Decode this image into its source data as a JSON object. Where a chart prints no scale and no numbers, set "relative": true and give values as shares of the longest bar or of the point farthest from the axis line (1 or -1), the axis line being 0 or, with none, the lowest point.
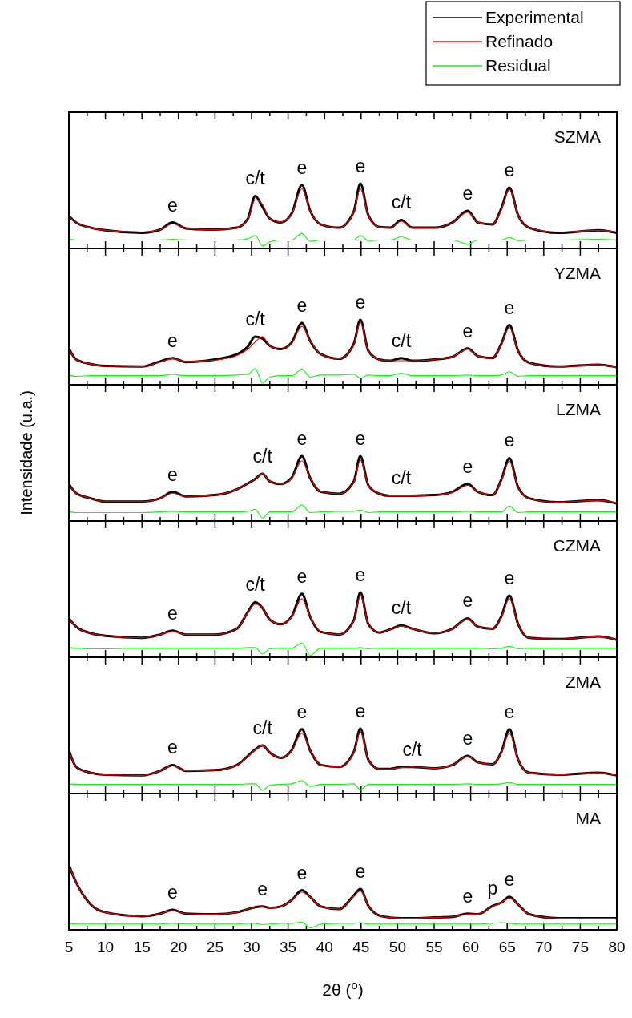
{
  "chart_data": [
    {
      "type": "line",
      "title": "SZMA",
      "relative": true,
      "legend": "top right",
      "tick_labels": false,
      "xlim": [
        5,
        80
      ],
      "xticks": [
        5,
        {
          "value": 7.5,
          "label": null
        },
        10,
        {
          "value": 12.5,
          "label": null
        },
        15,
        {
          "value": 17.5,
          "label": null
        },
        20,
        {
          "value": 22.5,
          "label": null
        },
        25,
        {
          "value": 27.5,
          "label": null
        },
        30,
        {
          "value": 32.5,
          "label": null
        },
        35,
        {
          "value": 37.5,
          "label": null
        },
        40,
        {
          "value": 42.5,
          "label": null
        },
        45,
        {
          "value": 47.5,
          "label": null
        },
        50,
        {
          "value": 52.5,
          "label": null
        },
        55,
        {
          "value": 57.5,
          "label": null
        },
        60,
        {
          "value": 62.5,
          "label": null
        },
        65,
        {
          "value": 67.5,
          "label": null
        },
        70,
        {
          "value": 72.5,
          "label": null
        },
        75,
        {
          "value": 77.5,
          "label": null
        },
        80
      ],
      "x": [
        5,
        6,
        8,
        10,
        15,
        17.5,
        19.2,
        21,
        25,
        28,
        29.5,
        30.5,
        31.5,
        32.5,
        34,
        35.5,
        36.9,
        38,
        39.5,
        42,
        44,
        44.9,
        46,
        47.5,
        49,
        50.5,
        52,
        55,
        57.5,
        59.6,
        61,
        63,
        64.2,
        65.3,
        66.5,
        68,
        72,
        77.5,
        80
      ],
      "series": [
        {
          "name": "Experimental",
          "color": "#000000",
          "values": [
            0.5,
            0.4,
            0.32,
            0.28,
            0.24,
            0.29,
            0.4,
            0.31,
            0.29,
            0.32,
            0.46,
            0.81,
            0.64,
            0.46,
            0.4,
            0.54,
            0.98,
            0.59,
            0.37,
            0.32,
            0.57,
            1.0,
            0.51,
            0.33,
            0.32,
            0.44,
            0.32,
            0.32,
            0.4,
            0.58,
            0.4,
            0.37,
            0.62,
            0.94,
            0.51,
            0.32,
            0.24,
            0.28,
            0.24
          ]
        },
        {
          "name": "Refinado",
          "color": "#ff0000",
          "values": [
            0.5,
            0.4,
            0.32,
            0.28,
            0.25,
            0.29,
            0.38,
            0.31,
            0.29,
            0.32,
            0.45,
            0.75,
            0.68,
            0.46,
            0.41,
            0.53,
            0.92,
            0.58,
            0.37,
            0.32,
            0.56,
            0.92,
            0.51,
            0.33,
            0.32,
            0.42,
            0.32,
            0.32,
            0.4,
            0.56,
            0.4,
            0.37,
            0.6,
            0.91,
            0.51,
            0.32,
            0.25,
            0.28,
            0.25
          ]
        },
        {
          "name": "Residual",
          "color": "#00ff00",
          "values": [
            0.14,
            0.13,
            0.13,
            0.13,
            0.13,
            0.13,
            0.14,
            0.13,
            0.13,
            0.13,
            0.15,
            0.2,
            0.04,
            0.1,
            0.13,
            0.13,
            0.23,
            0.11,
            0.13,
            0.13,
            0.13,
            0.2,
            0.12,
            0.13,
            0.13,
            0.18,
            0.13,
            0.13,
            0.13,
            0.07,
            0.13,
            0.13,
            0.13,
            0.17,
            0.12,
            0.13,
            0.13,
            0.14,
            0.13
          ]
        }
      ],
      "annotations": [
        {
          "text": "e",
          "x": 19.2,
          "y": 0.4
        },
        {
          "text": "c/t",
          "x": 30.5,
          "y": 0.81
        },
        {
          "text": "e",
          "x": 36.9,
          "y": 0.98
        },
        {
          "text": "e",
          "x": 44.9,
          "y": 1.0
        },
        {
          "text": "c/t",
          "x": 50.5,
          "y": 0.44
        },
        {
          "text": "e",
          "x": 59.6,
          "y": 0.58
        },
        {
          "text": "e",
          "x": 65.3,
          "y": 0.94
        }
      ]
    },
    {
      "type": "line",
      "title": "YZMA",
      "relative": true,
      "tick_labels": false,
      "xlim": [
        5,
        80
      ],
      "xticks": [
        5,
        {
          "value": 7.5,
          "label": null
        },
        10,
        {
          "value": 12.5,
          "label": null
        },
        15,
        {
          "value": 17.5,
          "label": null
        },
        20,
        {
          "value": 22.5,
          "label": null
        },
        25,
        {
          "value": 27.5,
          "label": null
        },
        30,
        {
          "value": 32.5,
          "label": null
        },
        35,
        {
          "value": 37.5,
          "label": null
        },
        40,
        {
          "value": 42.5,
          "label": null
        },
        45,
        {
          "value": 47.5,
          "label": null
        },
        50,
        {
          "value": 52.5,
          "label": null
        },
        55,
        {
          "value": 57.5,
          "label": null
        },
        60,
        {
          "value": 62.5,
          "label": null
        },
        65,
        {
          "value": 67.5,
          "label": null
        },
        70,
        {
          "value": 72.5,
          "label": null
        },
        75,
        {
          "value": 77.5,
          "label": null
        },
        80
      ],
      "x": [
        5,
        6,
        8,
        10,
        15,
        17.5,
        19.2,
        21,
        25,
        28,
        29.5,
        30.5,
        31.5,
        32.5,
        34,
        35.5,
        36.9,
        38,
        39.5,
        42,
        44,
        44.9,
        46,
        47.5,
        49,
        50.5,
        52,
        55,
        57.5,
        59.6,
        61,
        63,
        64.2,
        65.3,
        66.5,
        68,
        72,
        77.5,
        80
      ],
      "series": [
        {
          "color": "#000000",
          "values": [
            0.56,
            0.39,
            0.32,
            0.29,
            0.28,
            0.36,
            0.41,
            0.35,
            0.39,
            0.47,
            0.59,
            0.74,
            0.71,
            0.6,
            0.55,
            0.65,
            0.95,
            0.68,
            0.47,
            0.4,
            0.63,
            1.0,
            0.52,
            0.39,
            0.37,
            0.41,
            0.37,
            0.39,
            0.43,
            0.56,
            0.44,
            0.41,
            0.63,
            0.92,
            0.52,
            0.34,
            0.28,
            0.31,
            0.27
          ]
        },
        {
          "color": "#ff0000",
          "values": [
            0.55,
            0.39,
            0.32,
            0.29,
            0.28,
            0.35,
            0.4,
            0.36,
            0.38,
            0.45,
            0.55,
            0.66,
            0.74,
            0.6,
            0.55,
            0.64,
            0.9,
            0.68,
            0.47,
            0.4,
            0.62,
            0.96,
            0.52,
            0.39,
            0.37,
            0.37,
            0.37,
            0.39,
            0.43,
            0.55,
            0.44,
            0.41,
            0.62,
            0.88,
            0.52,
            0.34,
            0.28,
            0.31,
            0.27
          ]
        },
        {
          "color": "#00ff00",
          "values": [
            0.15,
            0.13,
            0.14,
            0.14,
            0.14,
            0.14,
            0.16,
            0.14,
            0.14,
            0.15,
            0.16,
            0.25,
            0.03,
            0.12,
            0.14,
            0.14,
            0.24,
            0.12,
            0.15,
            0.15,
            0.16,
            0.1,
            0.15,
            0.14,
            0.14,
            0.18,
            0.14,
            0.14,
            0.14,
            0.15,
            0.14,
            0.14,
            0.15,
            0.2,
            0.13,
            0.14,
            0.14,
            0.14,
            0.14
          ]
        }
      ],
      "annotations": [
        {
          "text": "e",
          "x": 19.2,
          "y": 0.41
        },
        {
          "text": "c/t",
          "x": 30.5,
          "y": 0.74
        },
        {
          "text": "e",
          "x": 36.9,
          "y": 0.95
        },
        {
          "text": "e",
          "x": 44.9,
          "y": 1.0
        },
        {
          "text": "c/t",
          "x": 50.5,
          "y": 0.41
        },
        {
          "text": "e",
          "x": 59.6,
          "y": 0.56
        },
        {
          "text": "e",
          "x": 65.3,
          "y": 0.92
        }
      ]
    },
    {
      "type": "line",
      "title": "LZMA",
      "ylabel": "Intensidade (u.a.)",
      "relative": true,
      "tick_labels": false,
      "xlim": [
        5,
        80
      ],
      "xticks": [
        5,
        {
          "value": 7.5,
          "label": null
        },
        10,
        {
          "value": 12.5,
          "label": null
        },
        15,
        {
          "value": 17.5,
          "label": null
        },
        20,
        {
          "value": 22.5,
          "label": null
        },
        25,
        {
          "value": 27.5,
          "label": null
        },
        30,
        {
          "value": 32.5,
          "label": null
        },
        35,
        {
          "value": 37.5,
          "label": null
        },
        40,
        {
          "value": 42.5,
          "label": null
        },
        45,
        {
          "value": 47.5,
          "label": null
        },
        50,
        {
          "value": 52.5,
          "label": null
        },
        55,
        {
          "value": 57.5,
          "label": null
        },
        60,
        {
          "value": 62.5,
          "label": null
        },
        65,
        {
          "value": 67.5,
          "label": null
        },
        70,
        {
          "value": 72.5,
          "label": null
        },
        75,
        {
          "value": 77.5,
          "label": null
        },
        80
      ],
      "x": [
        5,
        6,
        8,
        10,
        15,
        17.5,
        19.2,
        21,
        25,
        28,
        29.5,
        30.5,
        31.5,
        32.5,
        34,
        35.5,
        36.9,
        38,
        39.5,
        42,
        44,
        44.9,
        46,
        47.5,
        49,
        50.5,
        52,
        55,
        57.5,
        59.6,
        61,
        63,
        64.2,
        65.3,
        66.5,
        68,
        72,
        77.5,
        80
      ],
      "series": [
        {
          "color": "#000000",
          "values": [
            0.57,
            0.43,
            0.35,
            0.3,
            0.3,
            0.35,
            0.45,
            0.38,
            0.4,
            0.49,
            0.58,
            0.65,
            0.73,
            0.61,
            0.57,
            0.67,
            1.0,
            0.67,
            0.45,
            0.42,
            0.61,
            1.0,
            0.55,
            0.42,
            0.39,
            0.39,
            0.39,
            0.4,
            0.45,
            0.57,
            0.45,
            0.4,
            0.64,
            0.97,
            0.52,
            0.35,
            0.29,
            0.32,
            0.27
          ]
        },
        {
          "color": "#ff0000",
          "values": [
            0.57,
            0.43,
            0.35,
            0.3,
            0.3,
            0.35,
            0.43,
            0.38,
            0.4,
            0.49,
            0.58,
            0.65,
            0.73,
            0.61,
            0.57,
            0.66,
            0.93,
            0.67,
            0.45,
            0.42,
            0.6,
            0.94,
            0.55,
            0.42,
            0.39,
            0.39,
            0.39,
            0.4,
            0.44,
            0.55,
            0.45,
            0.4,
            0.63,
            0.92,
            0.52,
            0.35,
            0.29,
            0.32,
            0.28
          ]
        },
        {
          "color": "#00ff00",
          "values": [
            0.14,
            0.13,
            0.13,
            0.13,
            0.13,
            0.14,
            0.15,
            0.14,
            0.14,
            0.14,
            0.15,
            0.18,
            0.05,
            0.14,
            0.14,
            0.14,
            0.25,
            0.13,
            0.14,
            0.15,
            0.15,
            0.17,
            0.13,
            0.14,
            0.14,
            0.14,
            0.14,
            0.14,
            0.14,
            0.15,
            0.14,
            0.14,
            0.14,
            0.23,
            0.13,
            0.14,
            0.14,
            0.14,
            0.14
          ]
        }
      ],
      "annotations": [
        {
          "text": "e",
          "x": 19.2,
          "y": 0.45
        },
        {
          "text": "c/t",
          "x": 31.5,
          "y": 0.73
        },
        {
          "text": "e",
          "x": 36.9,
          "y": 1.0
        },
        {
          "text": "e",
          "x": 44.9,
          "y": 1.0
        },
        {
          "text": "c/t",
          "x": 50.5,
          "y": 0.39
        },
        {
          "text": "e",
          "x": 59.6,
          "y": 0.57
        },
        {
          "text": "e",
          "x": 65.3,
          "y": 0.97
        }
      ]
    },
    {
      "type": "line",
      "title": "CZMA",
      "relative": true,
      "tick_labels": false,
      "xlim": [
        5,
        80
      ],
      "xticks": [
        5,
        {
          "value": 7.5,
          "label": null
        },
        10,
        {
          "value": 12.5,
          "label": null
        },
        15,
        {
          "value": 17.5,
          "label": null
        },
        20,
        {
          "value": 22.5,
          "label": null
        },
        25,
        {
          "value": 27.5,
          "label": null
        },
        30,
        {
          "value": 32.5,
          "label": null
        },
        35,
        {
          "value": 37.5,
          "label": null
        },
        40,
        {
          "value": 42.5,
          "label": null
        },
        45,
        {
          "value": 47.5,
          "label": null
        },
        50,
        {
          "value": 52.5,
          "label": null
        },
        55,
        {
          "value": 57.5,
          "label": null
        },
        60,
        {
          "value": 62.5,
          "label": null
        },
        65,
        {
          "value": 67.5,
          "label": null
        },
        70,
        {
          "value": 72.5,
          "label": null
        },
        75,
        {
          "value": 77.5,
          "label": null
        },
        80
      ],
      "x": [
        5,
        6,
        8,
        10,
        15,
        17.5,
        19.2,
        21,
        25,
        28,
        29.5,
        30.5,
        31.5,
        32.5,
        34,
        35.5,
        36.9,
        38,
        39.5,
        42,
        44,
        44.9,
        46,
        47.5,
        49,
        50.5,
        52,
        55,
        57.5,
        59.6,
        61,
        63,
        64.2,
        65.3,
        66.5,
        68,
        72,
        77.5,
        80
      ],
      "series": [
        {
          "color": "#000000",
          "values": [
            0.6,
            0.47,
            0.37,
            0.33,
            0.3,
            0.35,
            0.41,
            0.35,
            0.35,
            0.44,
            0.7,
            0.85,
            0.76,
            0.58,
            0.51,
            0.63,
            0.98,
            0.63,
            0.39,
            0.35,
            0.57,
            1.0,
            0.51,
            0.38,
            0.43,
            0.49,
            0.44,
            0.37,
            0.44,
            0.6,
            0.47,
            0.44,
            0.63,
            0.95,
            0.51,
            0.3,
            0.28,
            0.32,
            0.27
          ]
        },
        {
          "color": "#ff0000",
          "values": [
            0.6,
            0.47,
            0.37,
            0.33,
            0.3,
            0.35,
            0.4,
            0.35,
            0.35,
            0.44,
            0.69,
            0.82,
            0.76,
            0.58,
            0.51,
            0.62,
            0.9,
            0.63,
            0.39,
            0.35,
            0.56,
            0.96,
            0.51,
            0.38,
            0.43,
            0.48,
            0.44,
            0.37,
            0.44,
            0.59,
            0.47,
            0.44,
            0.62,
            0.9,
            0.51,
            0.3,
            0.28,
            0.32,
            0.27
          ]
        },
        {
          "color": "#00ff00",
          "values": [
            0.15,
            0.14,
            0.13,
            0.13,
            0.14,
            0.14,
            0.14,
            0.14,
            0.14,
            0.14,
            0.15,
            0.15,
            0.05,
            0.13,
            0.14,
            0.14,
            0.22,
            0.03,
            0.14,
            0.14,
            0.14,
            0.15,
            0.13,
            0.14,
            0.14,
            0.14,
            0.14,
            0.14,
            0.14,
            0.14,
            0.14,
            0.13,
            0.14,
            0.17,
            0.13,
            0.14,
            0.14,
            0.14,
            0.14
          ]
        }
      ],
      "annotations": [
        {
          "text": "e",
          "x": 19.2,
          "y": 0.41
        },
        {
          "text": "c/t",
          "x": 30.5,
          "y": 0.85
        },
        {
          "text": "e",
          "x": 36.9,
          "y": 0.98
        },
        {
          "text": "e",
          "x": 44.9,
          "y": 1.0
        },
        {
          "text": "c/t",
          "x": 50.5,
          "y": 0.49
        },
        {
          "text": "e",
          "x": 59.6,
          "y": 0.6
        },
        {
          "text": "e",
          "x": 65.3,
          "y": 0.95
        }
      ]
    },
    {
      "type": "line",
      "title": "ZMA",
      "relative": true,
      "tick_labels": false,
      "xlim": [
        5,
        80
      ],
      "xticks": [
        5,
        {
          "value": 7.5,
          "label": null
        },
        10,
        {
          "value": 12.5,
          "label": null
        },
        15,
        {
          "value": 17.5,
          "label": null
        },
        20,
        {
          "value": 22.5,
          "label": null
        },
        25,
        {
          "value": 27.5,
          "label": null
        },
        30,
        {
          "value": 32.5,
          "label": null
        },
        35,
        {
          "value": 37.5,
          "label": null
        },
        40,
        {
          "value": 42.5,
          "label": null
        },
        45,
        {
          "value": 47.5,
          "label": null
        },
        50,
        {
          "value": 52.5,
          "label": null
        },
        55,
        {
          "value": 57.5,
          "label": null
        },
        60,
        {
          "value": 62.5,
          "label": null
        },
        65,
        {
          "value": 67.5,
          "label": null
        },
        70,
        {
          "value": 72.5,
          "label": null
        },
        75,
        {
          "value": 77.5,
          "label": null
        },
        80
      ],
      "x": [
        5,
        6,
        8,
        10,
        15,
        17.5,
        19.2,
        21,
        25,
        28,
        29.5,
        30.5,
        31.5,
        32.5,
        34,
        35.5,
        36.9,
        38,
        39.5,
        42,
        44,
        44.9,
        46,
        47.5,
        49,
        50.5,
        52,
        55,
        57.5,
        59.6,
        61,
        63,
        64.2,
        65.3,
        66.5,
        68,
        72,
        77.5,
        80
      ],
      "series": [
        {
          "color": "#000000",
          "values": [
            0.67,
            0.41,
            0.32,
            0.29,
            0.28,
            0.35,
            0.44,
            0.35,
            0.36,
            0.44,
            0.58,
            0.68,
            0.74,
            0.63,
            0.55,
            0.67,
            0.99,
            0.67,
            0.44,
            0.41,
            0.64,
            1.0,
            0.52,
            0.38,
            0.38,
            0.41,
            0.41,
            0.39,
            0.44,
            0.58,
            0.48,
            0.45,
            0.64,
            0.99,
            0.52,
            0.32,
            0.29,
            0.32,
            0.28
          ]
        },
        {
          "color": "#ff0000",
          "values": [
            0.67,
            0.41,
            0.32,
            0.29,
            0.28,
            0.35,
            0.43,
            0.35,
            0.36,
            0.44,
            0.57,
            0.67,
            0.74,
            0.63,
            0.55,
            0.66,
            0.93,
            0.67,
            0.44,
            0.41,
            0.63,
            0.95,
            0.52,
            0.38,
            0.38,
            0.4,
            0.41,
            0.39,
            0.44,
            0.57,
            0.48,
            0.45,
            0.63,
            0.93,
            0.52,
            0.32,
            0.29,
            0.32,
            0.28
          ]
        },
        {
          "color": "#00ff00",
          "values": [
            0.15,
            0.14,
            0.14,
            0.14,
            0.14,
            0.14,
            0.14,
            0.14,
            0.14,
            0.14,
            0.15,
            0.15,
            0.05,
            0.13,
            0.14,
            0.15,
            0.2,
            0.11,
            0.14,
            0.14,
            0.15,
            0.06,
            0.14,
            0.14,
            0.14,
            0.14,
            0.14,
            0.14,
            0.14,
            0.15,
            0.14,
            0.14,
            0.15,
            0.17,
            0.14,
            0.14,
            0.14,
            0.14,
            0.14
          ]
        }
      ],
      "annotations": [
        {
          "text": "e",
          "x": 19.2,
          "y": 0.44
        },
        {
          "text": "c/t",
          "x": 31.5,
          "y": 0.74
        },
        {
          "text": "e",
          "x": 36.9,
          "y": 0.99
        },
        {
          "text": "e",
          "x": 44.9,
          "y": 1.0
        },
        {
          "text": "c/t",
          "x": 52,
          "y": 0.41
        },
        {
          "text": "e",
          "x": 59.6,
          "y": 0.58
        },
        {
          "text": "e",
          "x": 65.3,
          "y": 0.99
        }
      ]
    },
    {
      "type": "line",
      "title": "MA",
      "xlabel": "2θ ($^{o}$)",
      "relative": true,
      "tick_labels": "x",
      "xlim": [
        5,
        80
      ],
      "xticks": [
        5,
        {
          "value": 7.5,
          "label": null
        },
        10,
        {
          "value": 12.5,
          "label": null
        },
        15,
        {
          "value": 17.5,
          "label": null
        },
        20,
        {
          "value": 22.5,
          "label": null
        },
        25,
        {
          "value": 27.5,
          "label": null
        },
        30,
        {
          "value": 32.5,
          "label": null
        },
        35,
        {
          "value": 37.5,
          "label": null
        },
        40,
        {
          "value": 42.5,
          "label": null
        },
        45,
        {
          "value": 47.5,
          "label": null
        },
        50,
        {
          "value": 52.5,
          "label": null
        },
        55,
        {
          "value": 57.5,
          "label": null
        },
        60,
        {
          "value": 62.5,
          "label": null
        },
        65,
        {
          "value": 67.5,
          "label": null
        },
        70,
        {
          "value": 72.5,
          "label": null
        },
        75,
        {
          "value": 77.5,
          "label": null
        },
        80
      ],
      "x": [
        5,
        6,
        8,
        10,
        15,
        17.5,
        19.2,
        21,
        25,
        28,
        29.5,
        30.5,
        31.5,
        32.5,
        34,
        35.5,
        36.9,
        38,
        39.5,
        42,
        44,
        44.9,
        46,
        47.5,
        49,
        50.5,
        52,
        55,
        57.5,
        59.6,
        61,
        63,
        64.2,
        65.3,
        66.5,
        68,
        72,
        77.5,
        80
      ],
      "series": [
        {
          "color": "#000000",
          "values": [
            1.0,
            0.73,
            0.39,
            0.27,
            0.21,
            0.25,
            0.31,
            0.25,
            0.24,
            0.27,
            0.32,
            0.35,
            0.36,
            0.34,
            0.36,
            0.46,
            0.61,
            0.51,
            0.36,
            0.32,
            0.53,
            0.63,
            0.37,
            0.22,
            0.19,
            0.18,
            0.18,
            0.19,
            0.2,
            0.25,
            0.24,
            0.37,
            0.42,
            0.51,
            0.39,
            0.24,
            0.18,
            0.18,
            0.18
          ]
        },
        {
          "color": "#ff0000",
          "values": [
            1.0,
            0.73,
            0.39,
            0.27,
            0.21,
            0.25,
            0.3,
            0.25,
            0.24,
            0.27,
            0.32,
            0.35,
            0.36,
            0.34,
            0.36,
            0.46,
            0.58,
            0.51,
            0.36,
            0.32,
            0.52,
            0.6,
            0.37,
            0.22,
            0.19,
            0.18,
            0.18,
            0.19,
            0.2,
            0.24,
            0.24,
            0.36,
            0.42,
            0.49,
            0.39,
            0.24,
            0.18,
            0.18,
            0.18
          ]
        },
        {
          "color": "#00ff00",
          "values": [
            0.1,
            0.09,
            0.09,
            0.09,
            0.09,
            0.09,
            0.1,
            0.09,
            0.09,
            0.09,
            0.1,
            0.1,
            0.08,
            0.09,
            0.1,
            0.1,
            0.12,
            0.03,
            0.09,
            0.1,
            0.1,
            0.11,
            0.09,
            0.09,
            0.09,
            0.09,
            0.09,
            0.09,
            0.09,
            0.09,
            0.09,
            0.1,
            0.11,
            0.1,
            0.09,
            0.09,
            0.09,
            0.09,
            0.09
          ]
        }
      ],
      "annotations": [
        {
          "text": "e",
          "x": 19.2,
          "y": 0.31
        },
        {
          "text": "e",
          "x": 31.5,
          "y": 0.36
        },
        {
          "text": "e",
          "x": 36.9,
          "y": 0.61
        },
        {
          "text": "e",
          "x": 44.9,
          "y": 0.63
        },
        {
          "text": "e",
          "x": 59.6,
          "y": 0.25
        },
        {
          "text": "p",
          "x": 63,
          "y": 0.37
        },
        {
          "text": "e",
          "x": 65.3,
          "y": 0.51
        }
      ]
    }
  ]
}
